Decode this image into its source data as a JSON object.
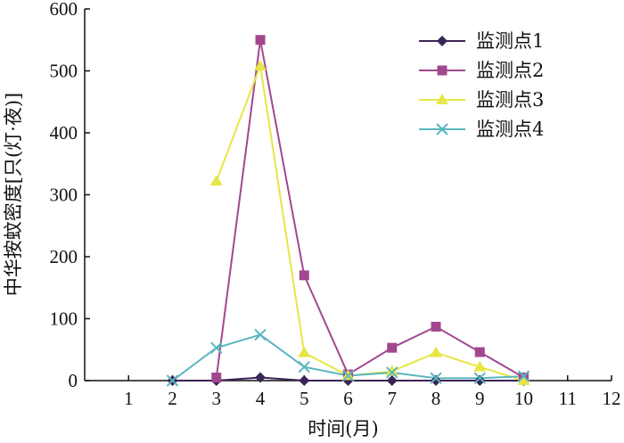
{
  "chart_data": {
    "type": "line",
    "title": "",
    "xlabel": "时间(月)",
    "ylabel": "中华按蚊密度[只(灯·夜)]",
    "xlim": [
      0,
      12
    ],
    "ylim": [
      0,
      600
    ],
    "x_ticks": [
      "1",
      "2",
      "3",
      "4",
      "5",
      "6",
      "7",
      "8",
      "9",
      "10",
      "11",
      "12"
    ],
    "y_ticks": [
      "0",
      "100",
      "200",
      "300",
      "400",
      "500",
      "600"
    ],
    "grid": false,
    "legend_position": "top-right",
    "series": [
      {
        "name": "监测点1",
        "color": "#3b2456",
        "marker": "diamond",
        "x": [
          2,
          3,
          4,
          5,
          6,
          7,
          8,
          9,
          10
        ],
        "y": [
          0,
          0,
          5,
          0,
          0,
          0,
          0,
          0,
          0
        ]
      },
      {
        "name": "监测点2",
        "color": "#a2478f",
        "marker": "square",
        "x": [
          3,
          4,
          5,
          6,
          7,
          8,
          9,
          10
        ],
        "y": [
          5,
          550,
          170,
          10,
          53,
          87,
          46,
          5
        ]
      },
      {
        "name": "监测点3",
        "color": "#e6e645",
        "marker": "triangle",
        "x": [
          3,
          4,
          5,
          6,
          7,
          8,
          9,
          10
        ],
        "y": [
          322,
          508,
          45,
          8,
          15,
          45,
          22,
          0
        ]
      },
      {
        "name": "监测点4",
        "color": "#5ab6c0",
        "marker": "x",
        "x": [
          2,
          3,
          4,
          5,
          6,
          7,
          8,
          9,
          10
        ],
        "y": [
          0,
          53,
          74,
          22,
          8,
          13,
          4,
          4,
          7
        ]
      }
    ]
  }
}
